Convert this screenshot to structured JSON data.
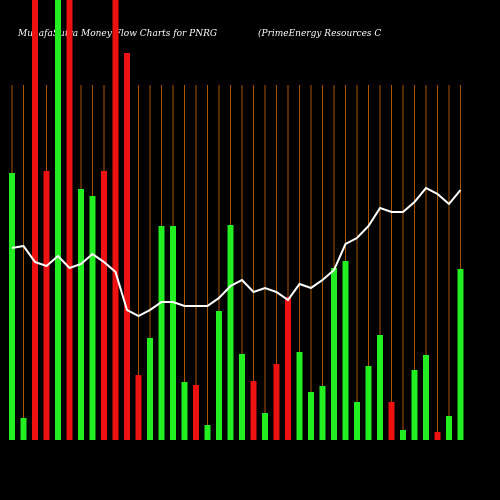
{
  "chart_data": {
    "type": "bar",
    "title": "MunafaSutra Money Flow Charts for PNRG",
    "subtitle": "(PrimeEnergy Resources C",
    "categories": [
      null,
      null,
      null,
      null,
      null,
      null,
      null,
      null,
      null,
      null,
      null,
      null,
      null,
      null,
      null,
      null,
      null,
      null,
      null,
      null,
      null,
      null,
      null,
      null,
      null,
      null,
      null,
      null,
      null,
      null,
      null,
      null,
      null,
      null,
      null,
      null,
      null,
      null,
      null,
      null
    ],
    "series": [
      {
        "color": "#22ee22",
        "values": [
          267,
          22,
          null,
          null,
          440,
          null,
          251,
          244,
          null,
          null,
          null,
          null,
          102,
          214,
          214,
          58,
          null,
          15,
          129,
          215,
          86,
          null,
          27,
          null,
          null,
          88,
          48,
          54,
          172,
          179,
          38,
          74,
          105,
          null,
          10,
          70,
          85,
          null,
          24,
          171
        ]
      },
      {
        "color": "#ee1111",
        "values": [
          null,
          null,
          440,
          269,
          null,
          440,
          null,
          null,
          269,
          440,
          387,
          65,
          null,
          null,
          null,
          null,
          55,
          null,
          null,
          null,
          null,
          59,
          null,
          76,
          143,
          null,
          null,
          null,
          null,
          null,
          null,
          null,
          null,
          38,
          null,
          null,
          null,
          8,
          null,
          null
        ]
      },
      {
        "type": "line",
        "color": "#ffffff",
        "values": [
          192,
          194,
          178,
          174,
          184,
          172,
          176,
          186,
          178,
          168,
          130,
          124,
          130,
          138,
          138,
          134,
          134,
          134,
          142,
          154,
          160,
          148,
          152,
          148,
          140,
          156,
          152,
          160,
          170,
          196,
          202,
          214,
          232,
          228,
          228,
          238,
          252,
          246,
          236,
          250
        ]
      }
    ],
    "ylim": [
      0,
      440
    ],
    "gridline_color": "#a85400"
  }
}
